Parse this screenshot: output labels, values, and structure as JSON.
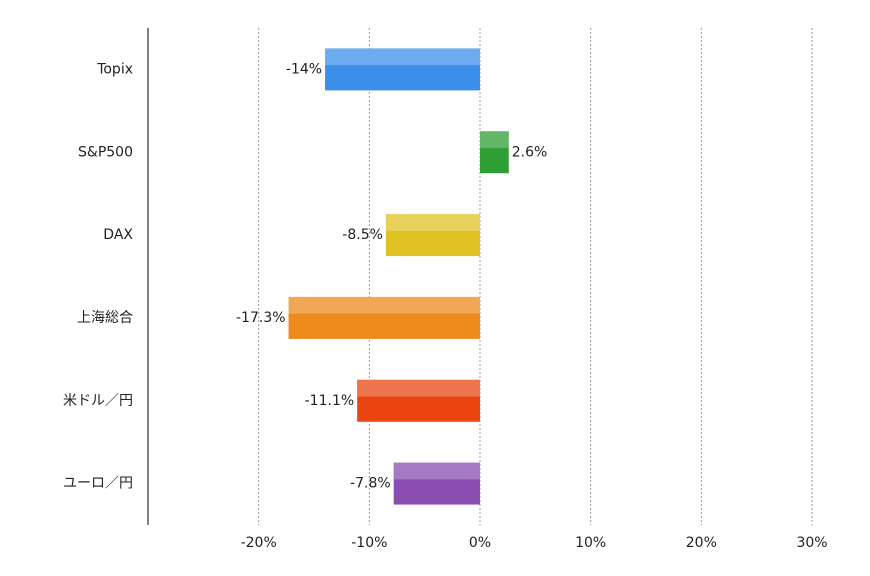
{
  "chart_data": {
    "type": "barh",
    "categories": [
      "Topix",
      "S&P500",
      "DAX",
      "上海総合",
      "米ドル／円",
      "ユーロ／円"
    ],
    "values": [
      -14,
      2.6,
      -8.5,
      -17.3,
      -11.1,
      -7.8
    ],
    "value_labels": [
      "-14%",
      "2.6%",
      "-8.5%",
      "-17.3%",
      "-11.1%",
      "-7.8%"
    ],
    "colors": [
      "#3b8fe8",
      "#2f9e35",
      "#e0c224",
      "#ec8a1c",
      "#ea4410",
      "#8a4eb2"
    ],
    "xlim": [
      -30,
      30
    ],
    "xticks": [
      {
        "value": -20,
        "label": "-20%"
      },
      {
        "value": -10,
        "label": "-10%"
      },
      {
        "value": 0,
        "label": "0%"
      },
      {
        "value": 10,
        "label": "10%"
      },
      {
        "value": 20,
        "label": "20%"
      },
      {
        "value": 30,
        "label": "30%"
      }
    ],
    "grid": true
  }
}
